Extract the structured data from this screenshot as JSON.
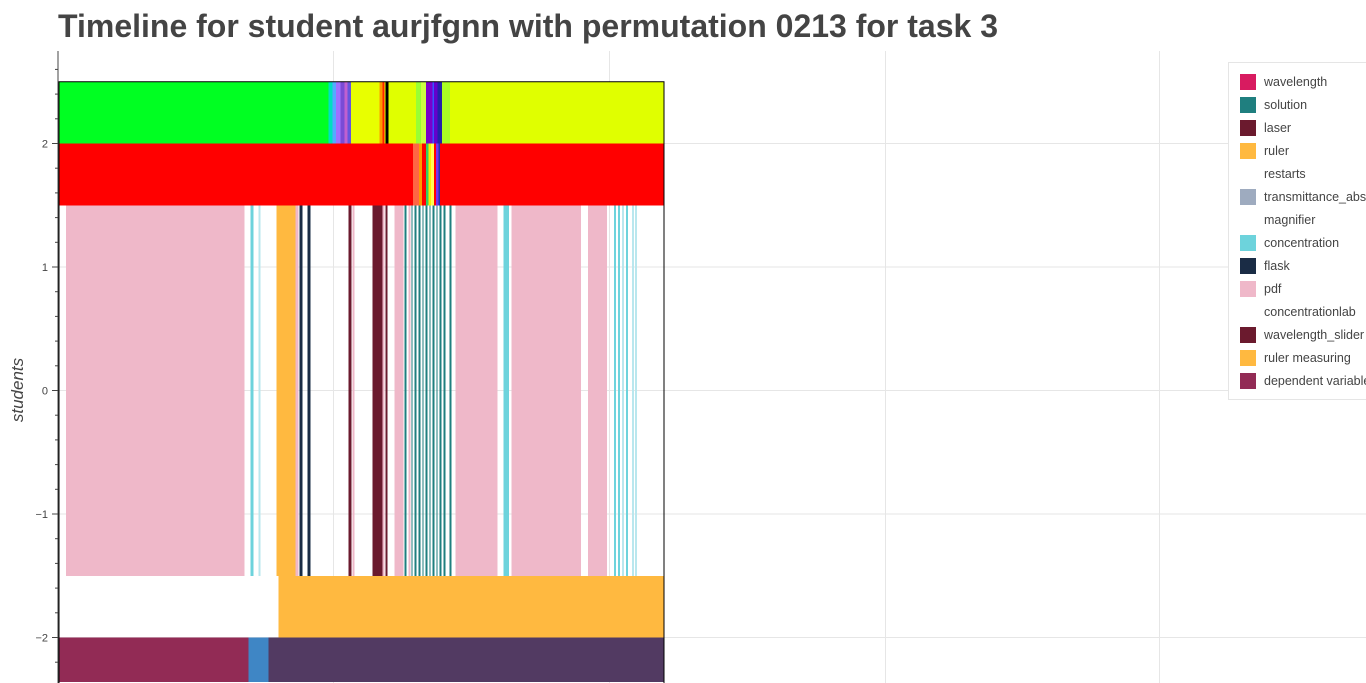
{
  "title": "Timeline for student aurjfgnn with permutation 0213 for task 3",
  "chart_data": {
    "type": "timeline",
    "title": "Timeline for student aurjfgnn with permutation 0213 for task 3",
    "ylabel": "students",
    "ylim": [
      -2.36,
      2.78
    ],
    "y_ticks": [
      {
        "value": 2,
        "label": "2"
      },
      {
        "value": 1,
        "label": "1"
      },
      {
        "value": 0,
        "label": "0"
      },
      {
        "value": -1,
        "label": "−1"
      },
      {
        "value": -2,
        "label": "−2"
      }
    ],
    "grid": true,
    "legend_position": "top-right",
    "legend": [
      {
        "name": "wavelength",
        "color": "#d81b60"
      },
      {
        "name": "solution",
        "color": "#1f7f7f"
      },
      {
        "name": "laser",
        "color": "#6b1a2e"
      },
      {
        "name": "ruler",
        "color": "#ffb940"
      },
      {
        "name": "restarts",
        "color": "#ffffff"
      },
      {
        "name": "transmittance_abs",
        "color": "#9eabbf"
      },
      {
        "name": "magnifier",
        "color": "#ffffff"
      },
      {
        "name": "concentration",
        "color": "#6dd3dc"
      },
      {
        "name": "flask",
        "color": "#1a2c45"
      },
      {
        "name": "pdf",
        "color": "#efb8c9"
      },
      {
        "name": "concentrationlab",
        "color": "#ffffff"
      },
      {
        "name": "wavelength_slider",
        "color": "#6b1a2e"
      },
      {
        "name": "ruler measuring",
        "color": "#ffb940"
      },
      {
        "name": "dependent variable",
        "color": "#922b55"
      }
    ],
    "rows": [
      {
        "name": "row-top",
        "y_range": [
          2,
          2.5
        ],
        "segments": [
          {
            "start": 0,
            "end": 0.4455,
            "color": "#00ff22"
          },
          {
            "start": 0.4455,
            "end": 0.452,
            "color": "#00e0c0"
          },
          {
            "start": 0.452,
            "end": 0.458,
            "color": "#55aaff"
          },
          {
            "start": 0.458,
            "end": 0.465,
            "color": "#a070ff"
          },
          {
            "start": 0.465,
            "end": 0.472,
            "color": "#7a4bd6"
          },
          {
            "start": 0.472,
            "end": 0.477,
            "color": "#c060d0"
          },
          {
            "start": 0.477,
            "end": 0.483,
            "color": "#6655dd"
          },
          {
            "start": 0.483,
            "end": 0.53,
            "color": "#e8ff00"
          },
          {
            "start": 0.53,
            "end": 0.535,
            "color": "#ff9900"
          },
          {
            "start": 0.535,
            "end": 0.538,
            "color": "#ff2200"
          },
          {
            "start": 0.538,
            "end": 0.54,
            "color": "#e8ff00"
          },
          {
            "start": 0.54,
            "end": 0.545,
            "color": "#000000"
          },
          {
            "start": 0.545,
            "end": 0.59,
            "color": "#e0ff00"
          },
          {
            "start": 0.59,
            "end": 0.598,
            "color": "#99ff33"
          },
          {
            "start": 0.598,
            "end": 0.607,
            "color": "#ccff44"
          },
          {
            "start": 0.607,
            "end": 0.617,
            "color": "#7a00cc"
          },
          {
            "start": 0.617,
            "end": 0.62,
            "color": "#3355ff"
          },
          {
            "start": 0.62,
            "end": 0.626,
            "color": "#6600cc"
          },
          {
            "start": 0.626,
            "end": 0.633,
            "color": "#2222aa"
          },
          {
            "start": 0.633,
            "end": 0.646,
            "color": "#aaff22"
          },
          {
            "start": 0.646,
            "end": 1,
            "color": "#e0ff00"
          }
        ]
      },
      {
        "name": "row-second",
        "y_range": [
          1.5,
          2
        ],
        "segments": [
          {
            "start": 0,
            "end": 0.585,
            "color": "#ff0000"
          },
          {
            "start": 0.585,
            "end": 0.595,
            "color": "#ff6644"
          },
          {
            "start": 0.595,
            "end": 0.6,
            "color": "#ff9900"
          },
          {
            "start": 0.6,
            "end": 0.607,
            "color": "#ff0000"
          },
          {
            "start": 0.607,
            "end": 0.611,
            "color": "#33cc66"
          },
          {
            "start": 0.611,
            "end": 0.615,
            "color": "#ffee00"
          },
          {
            "start": 0.615,
            "end": 0.62,
            "color": "#ffff55"
          },
          {
            "start": 0.62,
            "end": 0.623,
            "color": "#ff0000"
          },
          {
            "start": 0.623,
            "end": 0.627,
            "color": "#7733ee"
          },
          {
            "start": 0.627,
            "end": 0.63,
            "color": "#2233aa"
          },
          {
            "start": 0.63,
            "end": 1,
            "color": "#ff0000"
          }
        ]
      },
      {
        "name": "row-middle",
        "y_range": [
          -1.5,
          1.5
        ],
        "segments": [
          {
            "start": 0.0116,
            "end": 0.3063,
            "color": "#efb8c9"
          },
          {
            "start": 0.3162,
            "end": 0.3212,
            "color": "#6dd3dc"
          },
          {
            "start": 0.3295,
            "end": 0.3328,
            "color": "#b9e7ee"
          },
          {
            "start": 0.3593,
            "end": 0.3907,
            "color": "#ffb940"
          },
          {
            "start": 0.3907,
            "end": 0.3957,
            "color": "#efb8c9"
          },
          {
            "start": 0.3974,
            "end": 0.4023,
            "color": "#1a2c45"
          },
          {
            "start": 0.4106,
            "end": 0.4156,
            "color": "#1a2c45"
          },
          {
            "start": 0.4785,
            "end": 0.4834,
            "color": "#6b1a2e"
          },
          {
            "start": 0.4851,
            "end": 0.4884,
            "color": "#efb8c9"
          },
          {
            "start": 0.5182,
            "end": 0.5348,
            "color": "#6b1a2e"
          },
          {
            "start": 0.5348,
            "end": 0.5381,
            "color": "#efb8c9"
          },
          {
            "start": 0.5397,
            "end": 0.543,
            "color": "#6b1a2e"
          },
          {
            "start": 0.5546,
            "end": 0.5695,
            "color": "#efb8c9"
          },
          {
            "start": 0.5712,
            "end": 0.5745,
            "color": "#1f7f7f"
          },
          {
            "start": 0.5778,
            "end": 0.5811,
            "color": "#efb8c9"
          },
          {
            "start": 0.5828,
            "end": 0.5844,
            "color": "#1f7f7f"
          },
          {
            "start": 0.5877,
            "end": 0.591,
            "color": "#1f7f7f"
          },
          {
            "start": 0.5944,
            "end": 0.5977,
            "color": "#1f7f7f"
          },
          {
            "start": 0.601,
            "end": 0.6026,
            "color": "#1f7f7f"
          },
          {
            "start": 0.6059,
            "end": 0.6093,
            "color": "#1f7f7f"
          },
          {
            "start": 0.6126,
            "end": 0.6142,
            "color": "#1f7f7f"
          },
          {
            "start": 0.6175,
            "end": 0.6209,
            "color": "#1f7f7f"
          },
          {
            "start": 0.6242,
            "end": 0.6258,
            "color": "#1f7f7f"
          },
          {
            "start": 0.6291,
            "end": 0.6325,
            "color": "#1f7f7f"
          },
          {
            "start": 0.6358,
            "end": 0.6391,
            "color": "#1f7f7f"
          },
          {
            "start": 0.6457,
            "end": 0.649,
            "color": "#1f7f7f"
          },
          {
            "start": 0.6556,
            "end": 0.7252,
            "color": "#efb8c9"
          },
          {
            "start": 0.7351,
            "end": 0.7434,
            "color": "#6dd3dc"
          },
          {
            "start": 0.7483,
            "end": 0.8626,
            "color": "#efb8c9"
          },
          {
            "start": 0.8742,
            "end": 0.9056,
            "color": "#efb8c9"
          },
          {
            "start": 0.9172,
            "end": 0.9205,
            "color": "#6dd3dc"
          },
          {
            "start": 0.9238,
            "end": 0.9272,
            "color": "#6dd3dc"
          },
          {
            "start": 0.9305,
            "end": 0.9338,
            "color": "#b9e7ee"
          },
          {
            "start": 0.9371,
            "end": 0.9404,
            "color": "#6dd3dc"
          },
          {
            "start": 0.947,
            "end": 0.9503,
            "color": "#b9e7ee"
          },
          {
            "start": 0.952,
            "end": 0.9553,
            "color": "#b9e7ee"
          }
        ]
      },
      {
        "name": "row-fourth",
        "y_range": [
          -2,
          -1.5
        ],
        "segments": [
          {
            "start": 0.3626,
            "end": 1,
            "color": "#ffb940"
          }
        ]
      },
      {
        "name": "row-bottom",
        "y_range": [
          -2.36,
          -2
        ],
        "segments": [
          {
            "start": 0,
            "end": 0.3129,
            "color": "#922b55"
          },
          {
            "start": 0.3129,
            "end": 0.3461,
            "color": "#3f86c5"
          },
          {
            "start": 0.3461,
            "end": 1,
            "color": "#523a62"
          }
        ]
      }
    ]
  }
}
